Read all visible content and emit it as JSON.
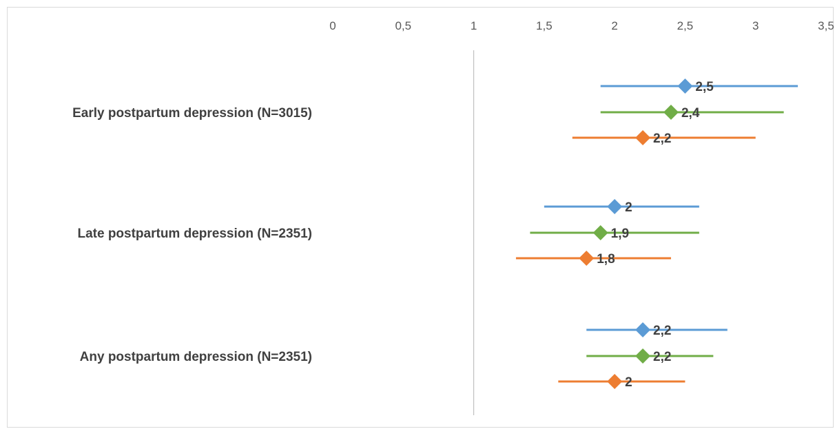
{
  "chart_data": {
    "type": "forest",
    "xlim": [
      0,
      3.5
    ],
    "x_ticks": [
      0,
      0.5,
      1,
      1.5,
      2,
      2.5,
      3,
      3.5
    ],
    "x_tick_labels": [
      "0",
      "0,5",
      "1",
      "1,5",
      "2",
      "2,5",
      "3",
      "3,5"
    ],
    "reference_line": 1,
    "categories": [
      "Early postpartum depression (N=3015)",
      "Late postpartum depression (N=2351)",
      "Any postpartum depression (N=2351)"
    ],
    "series": [
      {
        "color": "#5b9bd5",
        "points": [
          {
            "value": 2.5,
            "low": 1.9,
            "high": 3.3,
            "label": "2,5"
          },
          {
            "value": 2.0,
            "low": 1.5,
            "high": 2.6,
            "label": "2"
          },
          {
            "value": 2.2,
            "low": 1.8,
            "high": 2.8,
            "label": "2,2"
          }
        ]
      },
      {
        "color": "#70ad47",
        "points": [
          {
            "value": 2.4,
            "low": 1.9,
            "high": 3.2,
            "label": "2,4"
          },
          {
            "value": 1.9,
            "low": 1.4,
            "high": 2.6,
            "label": "1,9"
          },
          {
            "value": 2.2,
            "low": 1.8,
            "high": 2.7,
            "label": "2,2"
          }
        ]
      },
      {
        "color": "#ed7d31",
        "points": [
          {
            "value": 2.2,
            "low": 1.7,
            "high": 3.0,
            "label": "2,2"
          },
          {
            "value": 1.8,
            "low": 1.3,
            "high": 2.4,
            "label": "1,8"
          },
          {
            "value": 2.0,
            "low": 1.6,
            "high": 2.5,
            "label": "2"
          }
        ]
      }
    ],
    "grid": false,
    "legend": "none"
  }
}
